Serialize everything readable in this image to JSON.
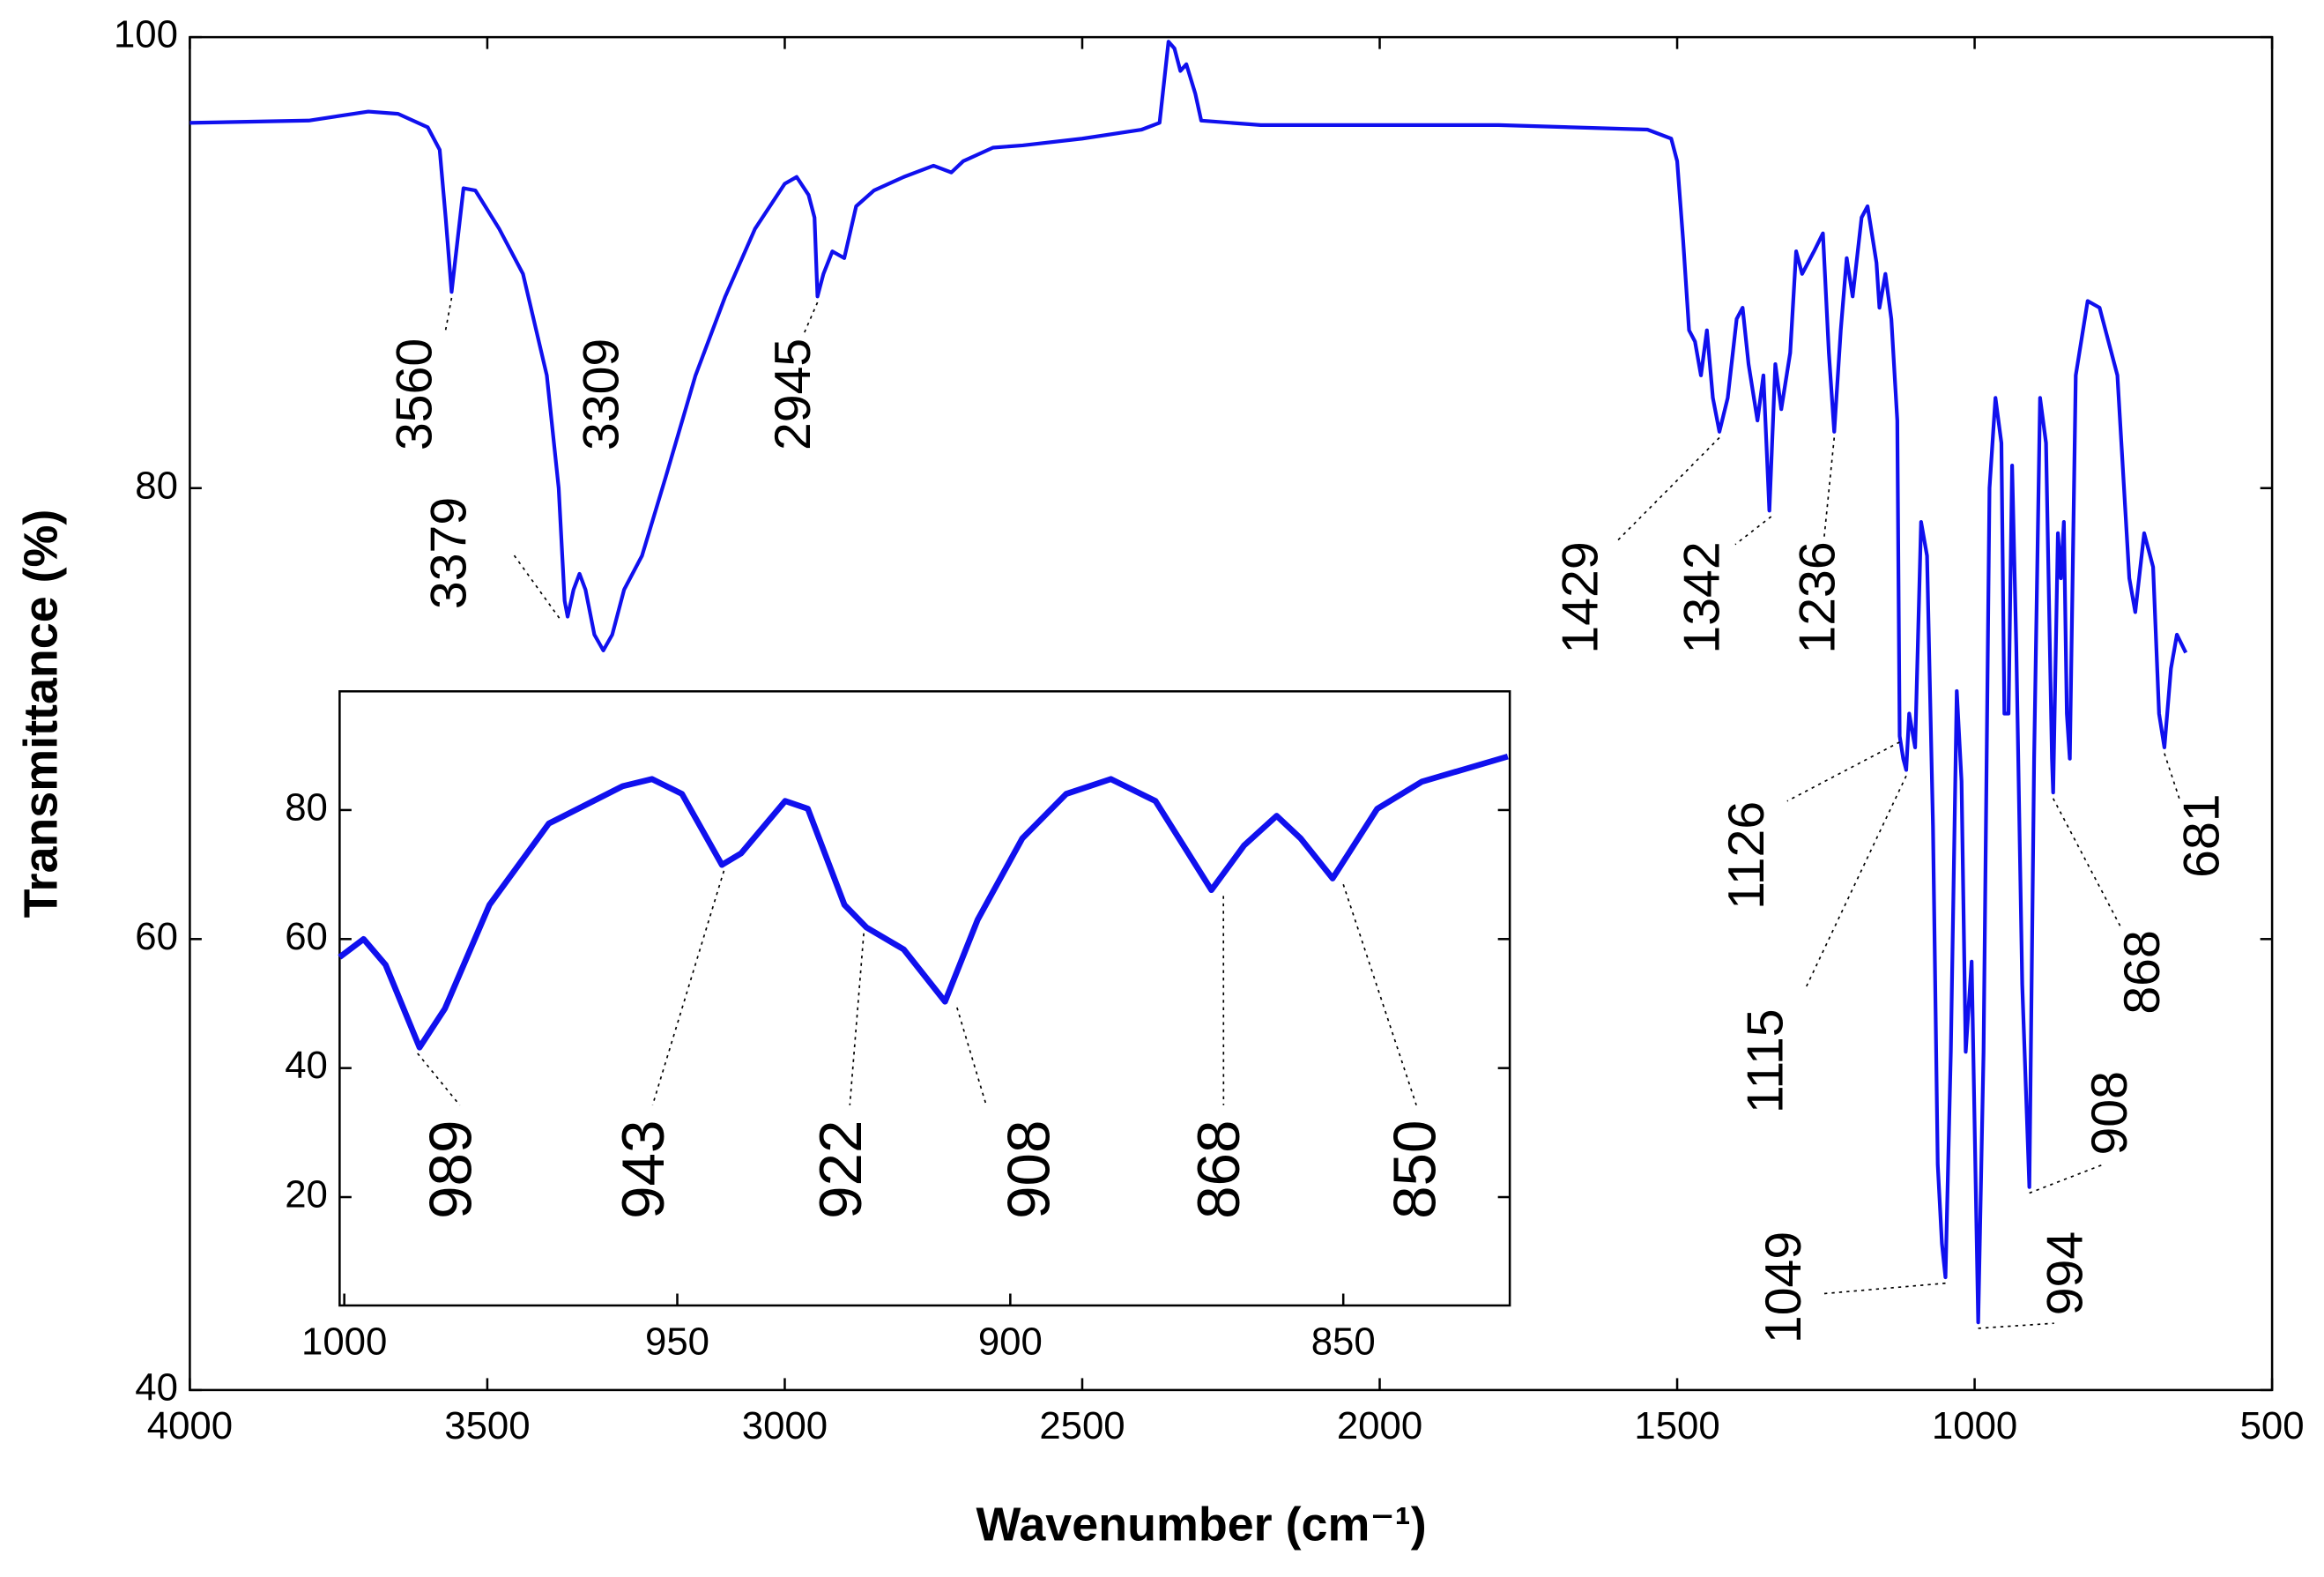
{
  "chart_data": [
    {
      "type": "line",
      "xlabel": "Wavenumber (cm⁻¹)",
      "ylabel": "Transmittance (%)",
      "xlim": [
        4000,
        500
      ],
      "ylim": [
        40,
        100
      ],
      "xticks": [
        4000,
        3500,
        3000,
        2500,
        2000,
        1500,
        1000,
        500
      ],
      "yticks": [
        40,
        60,
        80,
        100
      ],
      "color": "#1010ee",
      "x": [
        4000,
        3800,
        3700,
        3650,
        3600,
        3580,
        3570,
        3560,
        3550,
        3540,
        3520,
        3480,
        3440,
        3400,
        3380,
        3370,
        3365,
        3355,
        3345,
        3335,
        3320,
        3305,
        3290,
        3270,
        3240,
        3200,
        3150,
        3100,
        3050,
        3000,
        2980,
        2960,
        2950,
        2945,
        2935,
        2920,
        2900,
        2880,
        2850,
        2800,
        2750,
        2720,
        2700,
        2650,
        2600,
        2500,
        2400,
        2370,
        2355,
        2345,
        2335,
        2325,
        2310,
        2300,
        2200,
        2000,
        1800,
        1550,
        1510,
        1500,
        1490,
        1480,
        1470,
        1460,
        1450,
        1440,
        1429,
        1415,
        1400,
        1390,
        1380,
        1365,
        1355,
        1345,
        1335,
        1325,
        1310,
        1300,
        1290,
        1270,
        1255,
        1245,
        1236,
        1225,
        1215,
        1205,
        1190,
        1180,
        1165,
        1160,
        1150,
        1140,
        1130,
        1126,
        1120,
        1115,
        1110,
        1100,
        1090,
        1080,
        1070,
        1062,
        1055,
        1049,
        1040,
        1030,
        1022,
        1015,
        1005,
        994,
        985,
        975,
        965,
        955,
        950,
        943,
        937,
        930,
        920,
        908,
        900,
        890,
        880,
        870,
        868,
        860,
        855,
        850,
        845,
        840,
        830,
        810,
        790,
        760,
        740,
        730,
        715,
        700,
        690,
        681,
        670,
        660,
        645
      ],
      "values": [
        96.2,
        96.3,
        96.7,
        96.6,
        96.0,
        95,
        92,
        88.7,
        91,
        93.3,
        93.2,
        91.5,
        89.5,
        85,
        80,
        75,
        74.3,
        75.5,
        76.2,
        75.5,
        73.5,
        72.8,
        73.5,
        75.5,
        77,
        80.5,
        85,
        88.5,
        91.5,
        93.5,
        93.8,
        93,
        92,
        88.5,
        89.5,
        90.5,
        90.2,
        92.5,
        93.2,
        93.8,
        94.3,
        94,
        94.5,
        95.1,
        95.2,
        95.5,
        95.9,
        96.2,
        99.8,
        99.5,
        98.5,
        98.8,
        97.5,
        96.3,
        96.1,
        96.1,
        96.1,
        95.9,
        95.5,
        94.5,
        91,
        87,
        86.5,
        85,
        87,
        84,
        82.5,
        84,
        87.5,
        88,
        85.5,
        83,
        85,
        79,
        85.5,
        83.5,
        86,
        90.5,
        89.5,
        90.5,
        91.3,
        86,
        82.5,
        87,
        90.2,
        88.5,
        92,
        92.5,
        90,
        88,
        89.5,
        87.5,
        83,
        69,
        68,
        67.5,
        70,
        68.5,
        78.5,
        77,
        65,
        50,
        46.5,
        45,
        55,
        71,
        67,
        55,
        59,
        43,
        55,
        80,
        84,
        82,
        70,
        70,
        81,
        73,
        58,
        49,
        68,
        84,
        82,
        68,
        66.5,
        78,
        76,
        78.5,
        70,
        68,
        85,
        88.3,
        88,
        85,
        76,
        74.5,
        78,
        76.5,
        70,
        68.5,
        72,
        73.5,
        72.7
      ],
      "annotations": [
        {
          "label": "3560",
          "x": 3560,
          "y": 88.7
        },
        {
          "label": "3379",
          "x": 3379,
          "y": 74.5
        },
        {
          "label": "3309",
          "x": 3309,
          "y": 72.8
        },
        {
          "label": "2945",
          "x": 2945,
          "y": 88.5
        },
        {
          "label": "1429",
          "x": 1429,
          "y": 82.5
        },
        {
          "label": "1342",
          "x": 1342,
          "y": 79
        },
        {
          "label": "1236",
          "x": 1236,
          "y": 82.5
        },
        {
          "label": "1126",
          "x": 1126,
          "y": 69
        },
        {
          "label": "1115",
          "x": 1115,
          "y": 67.5
        },
        {
          "label": "1049",
          "x": 1049,
          "y": 45
        },
        {
          "label": "994",
          "x": 994,
          "y": 43
        },
        {
          "label": "908",
          "x": 908,
          "y": 49
        },
        {
          "label": "868",
          "x": 868,
          "y": 66.5
        },
        {
          "label": "681",
          "x": 681,
          "y": 68.5
        }
      ]
    },
    {
      "type": "line",
      "xlim": [
        1000.7,
        825
      ],
      "ylim": [
        3.2,
        98.4
      ],
      "xticks": [
        1000,
        950,
        900,
        850
      ],
      "yticks": [
        20,
        40,
        60,
        80
      ],
      "color": "#1010ee",
      "x": [
        1000.7,
        997.1,
        993.8,
        988.7,
        984.9,
        978.2,
        969.3,
        958.2,
        953.8,
        949.3,
        943.3,
        940.4,
        933.8,
        930.4,
        924.9,
        921.6,
        916,
        909.8,
        904.9,
        898.2,
        891.6,
        884.9,
        878.2,
        869.8,
        864.9,
        860,
        856.4,
        851.6,
        844.9,
        838.2,
        825.3
      ],
      "values": [
        57.2,
        60,
        56,
        43.2,
        49.2,
        65.3,
        77.9,
        83.7,
        84.8,
        82.5,
        71.5,
        73.3,
        81.4,
        80.2,
        65.3,
        61.8,
        58.4,
        50.3,
        63,
        75.6,
        82.5,
        84.8,
        81.4,
        67.6,
        74.5,
        79.1,
        75.6,
        69.4,
        80.2,
        84.4,
        88.3
      ],
      "annotations": [
        {
          "label": "989",
          "x": 989,
          "y": 43.2
        },
        {
          "label": "943",
          "x": 943,
          "y": 71.5
        },
        {
          "label": "922",
          "x": 922,
          "y": 61.8
        },
        {
          "label": "908",
          "x": 908,
          "y": 50.3
        },
        {
          "label": "868",
          "x": 868,
          "y": 67.6
        },
        {
          "label": "850",
          "x": 850,
          "y": 69.4
        }
      ]
    }
  ]
}
